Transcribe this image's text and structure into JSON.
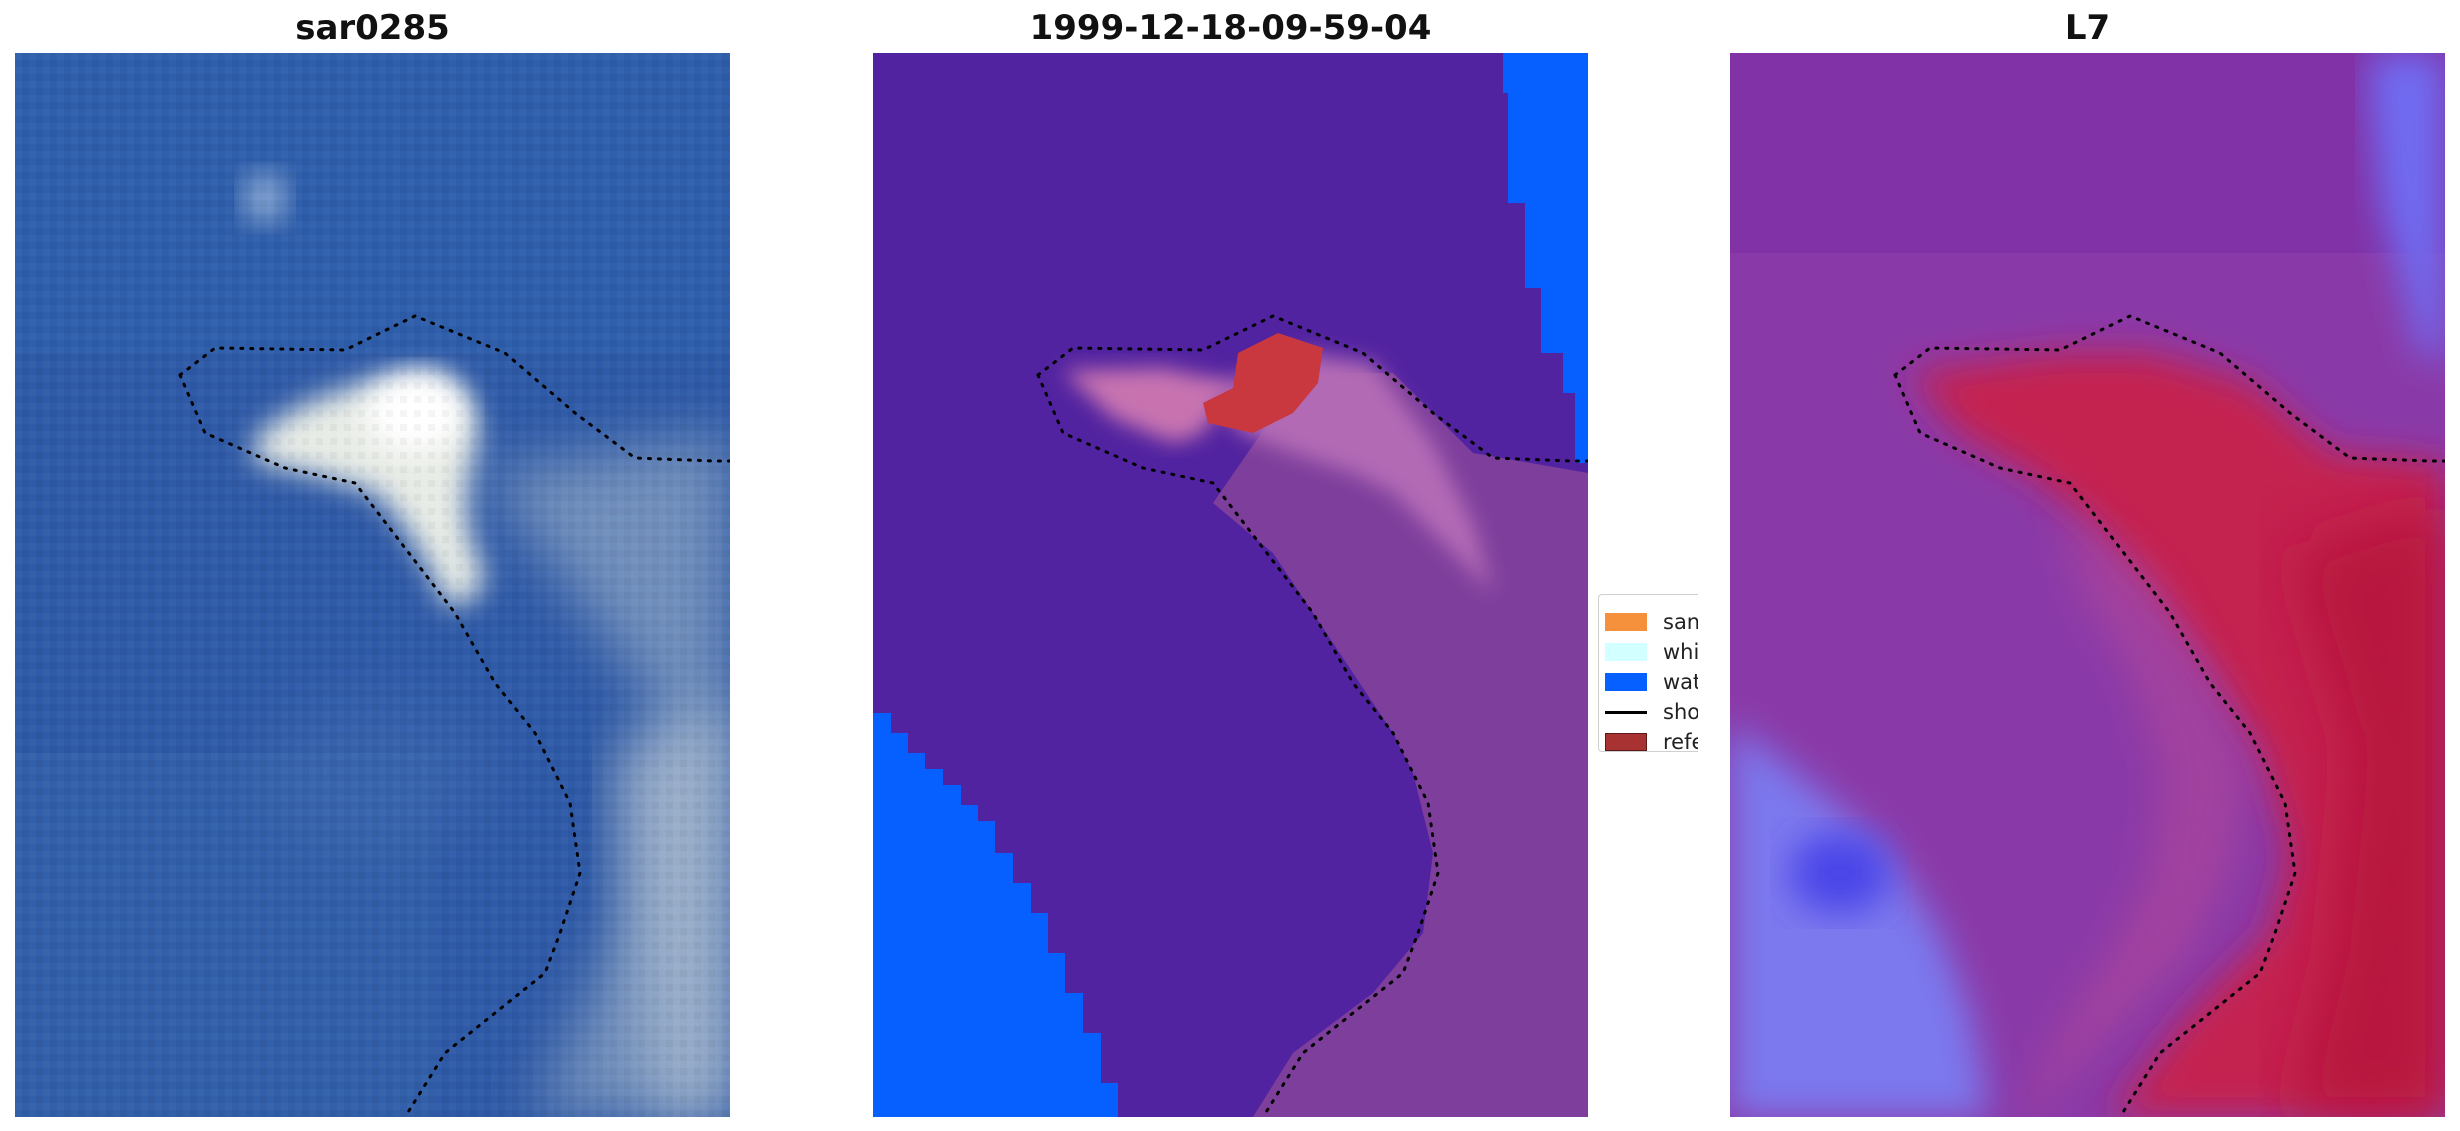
{
  "panels": [
    {
      "title": "sar0285"
    },
    {
      "title": "1999-12-18-09-59-04"
    },
    {
      "title": "L7"
    }
  ],
  "legend": {
    "items": [
      {
        "label": "sand",
        "color": "#f5903c",
        "kind": "patch"
      },
      {
        "label": "whitewater",
        "color": "#d2ffff",
        "kind": "patch"
      },
      {
        "label": "water",
        "color": "#0660ff",
        "kind": "patch"
      },
      {
        "label": "shoreline",
        "color": "#000000",
        "kind": "line"
      },
      {
        "label": "reference",
        "color": "#a83232",
        "kind": "patch"
      }
    ]
  },
  "colors": {
    "background_panel": "#5223a0",
    "water_class": "#0660ff",
    "rgb_water": "#2f5aa7",
    "l7_land": "#8a3aa8",
    "l7_sand": "#c4214f"
  }
}
